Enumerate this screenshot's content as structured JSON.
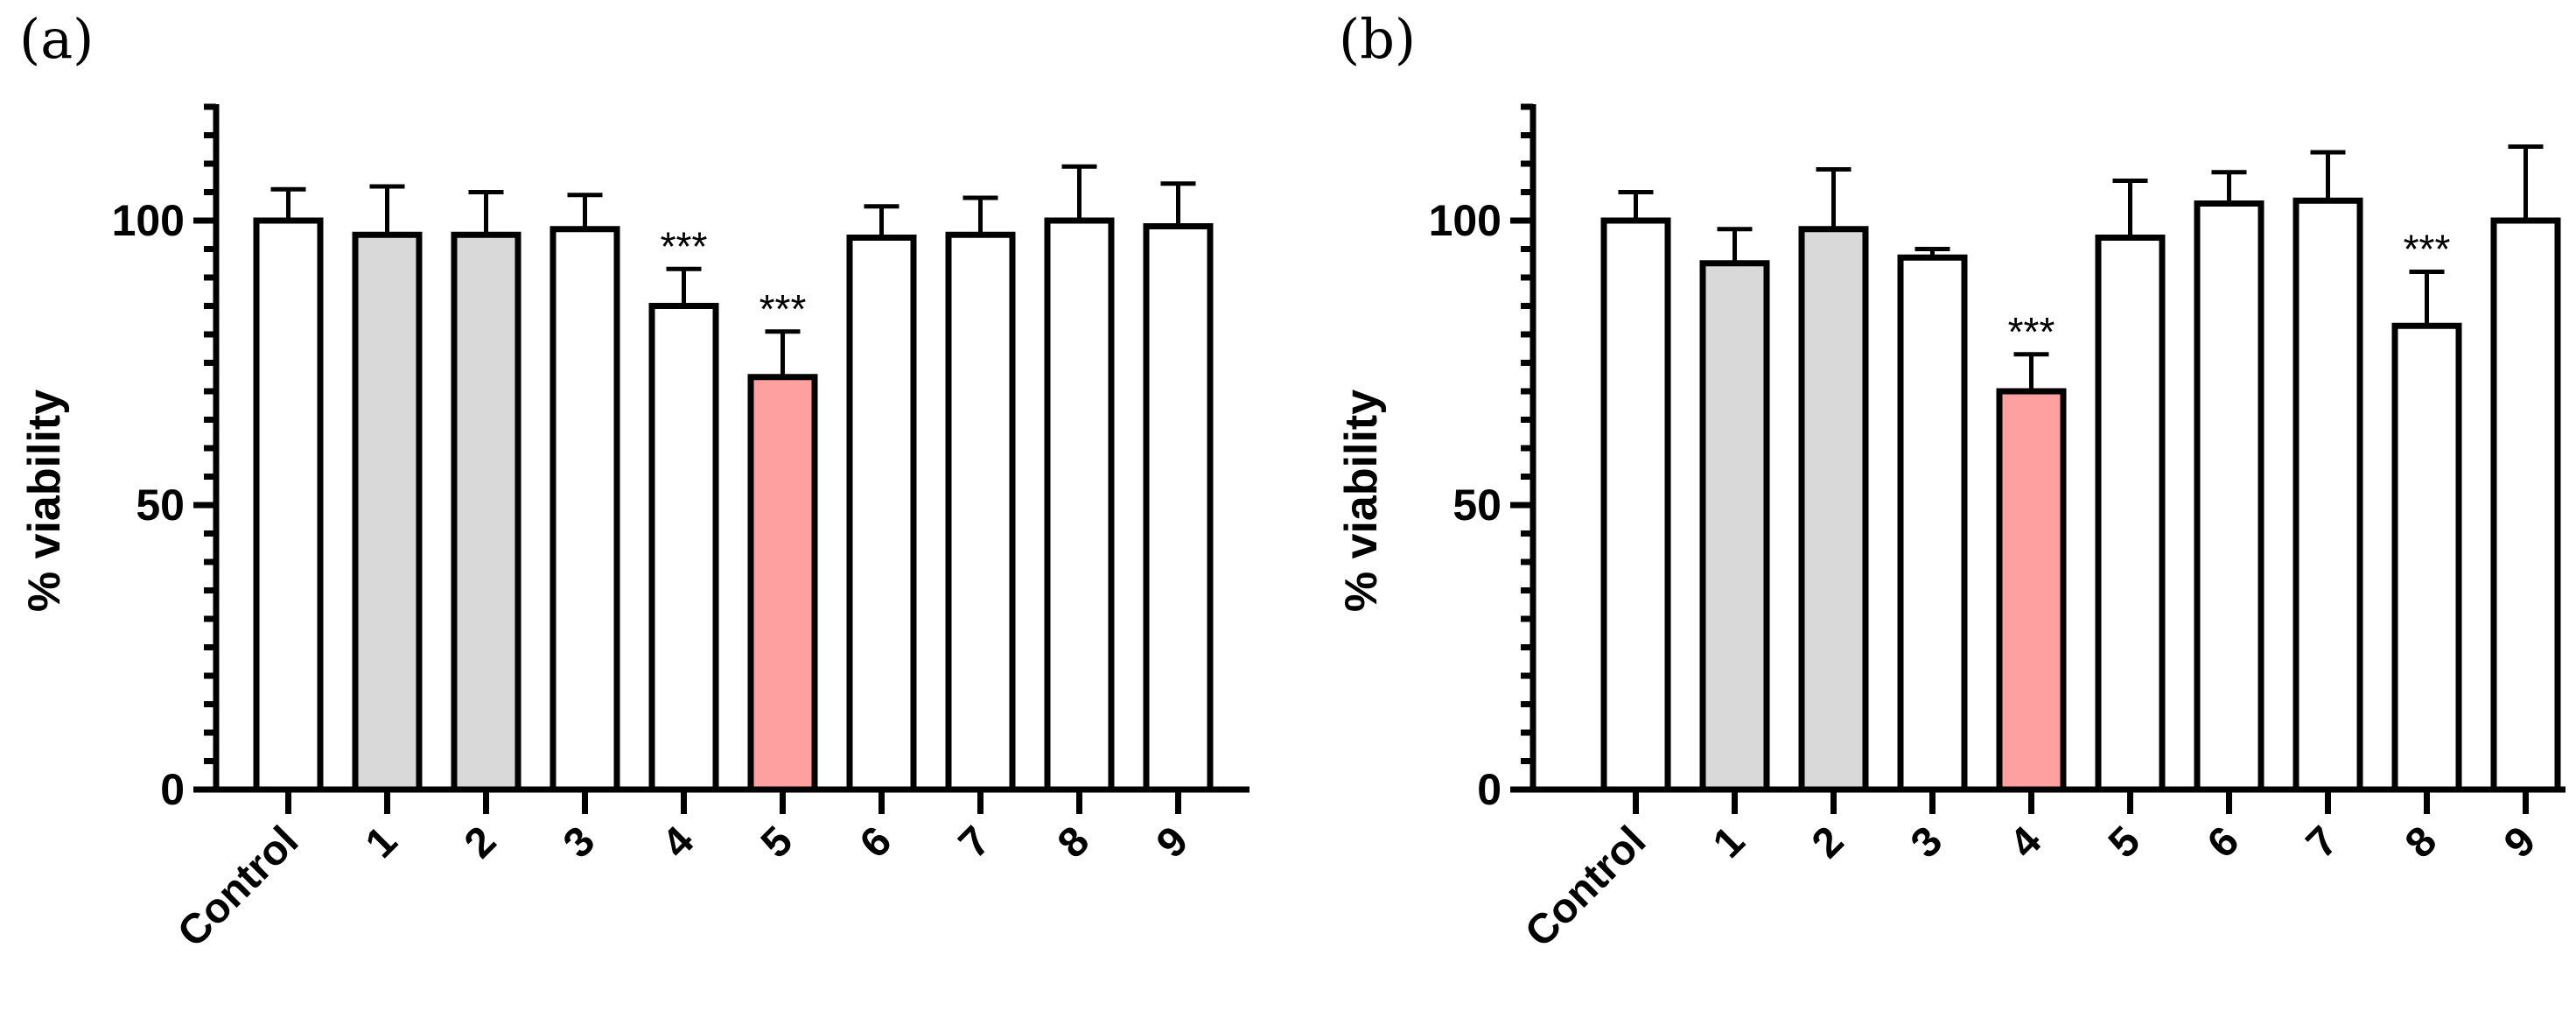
{
  "chart_data": [
    {
      "panel": "(a)",
      "type": "bar",
      "ylabel": "% viability",
      "ylim": [
        0,
        120
      ],
      "yticks": [
        0,
        50,
        100
      ],
      "categories": [
        "Control",
        "1",
        "2",
        "3",
        "4",
        "5",
        "6",
        "7",
        "8",
        "9"
      ],
      "values": [
        100,
        97.5,
        97.5,
        98.5,
        85,
        72.5,
        97,
        97.5,
        100,
        99
      ],
      "errors": [
        5.5,
        8.5,
        7.5,
        6,
        6.5,
        8,
        5.5,
        6.5,
        9.5,
        7.5
      ],
      "significance": [
        "",
        "",
        "",
        "",
        "***",
        "***",
        "",
        "",
        "",
        ""
      ],
      "fills": [
        "#ffffff",
        "#d9d9d9",
        "#d9d9d9",
        "#ffffff",
        "#ffffff",
        "#ffa0a0",
        "#ffffff",
        "#ffffff",
        "#ffffff",
        "#ffffff"
      ]
    },
    {
      "panel": "(b)",
      "type": "bar",
      "ylabel": "% viability",
      "ylim": [
        0,
        120
      ],
      "yticks": [
        0,
        50,
        100
      ],
      "categories": [
        "Control",
        "1",
        "2",
        "3",
        "4",
        "5",
        "6",
        "7",
        "8",
        "9"
      ],
      "values": [
        100,
        92.5,
        98.5,
        93.5,
        70,
        97,
        103,
        103.5,
        81.5,
        100
      ],
      "errors": [
        5,
        6,
        10.5,
        1.5,
        6.5,
        10,
        5.5,
        8.5,
        9.5,
        13
      ],
      "significance": [
        "",
        "",
        "",
        "",
        "***",
        "",
        "",
        "",
        "***",
        ""
      ],
      "fills": [
        "#ffffff",
        "#d9d9d9",
        "#d9d9d9",
        "#ffffff",
        "#ffa0a0",
        "#ffffff",
        "#ffffff",
        "#ffffff",
        "#ffffff",
        "#ffffff"
      ]
    }
  ],
  "colors": {
    "stroke": "#000000",
    "white": "#ffffff",
    "gray": "#d9d9d9",
    "red": "#ffa0a0"
  }
}
